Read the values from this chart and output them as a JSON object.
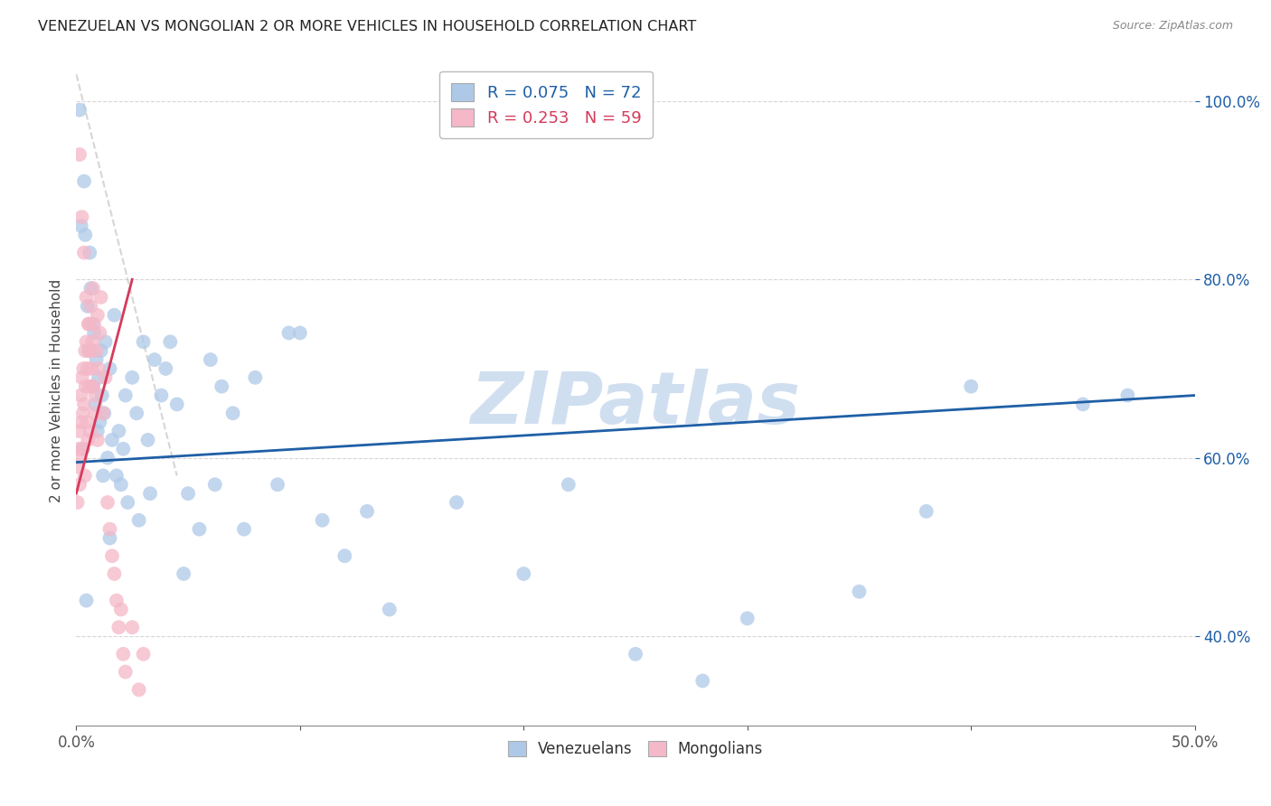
{
  "title": "VENEZUELAN VS MONGOLIAN 2 OR MORE VEHICLES IN HOUSEHOLD CORRELATION CHART",
  "source": "Source: ZipAtlas.com",
  "ylabel": "2 or more Vehicles in Household",
  "xlim": [
    0.0,
    50.0
  ],
  "ylim": [
    30.0,
    105.0
  ],
  "yticks": [
    40.0,
    60.0,
    80.0,
    100.0
  ],
  "xticks": [
    0.0,
    10.0,
    20.0,
    30.0,
    40.0,
    50.0
  ],
  "legend_blue_r": "R = 0.075",
  "legend_blue_n": "N = 72",
  "legend_pink_r": "R = 0.253",
  "legend_pink_n": "N = 59",
  "blue_color": "#aec9e8",
  "pink_color": "#f4b8c8",
  "blue_line_color": "#1f5fa6",
  "pink_line_color": "#d63a5a",
  "diag_color": "#cccccc",
  "watermark": "ZIPatlas",
  "watermark_color": "#d0dff0",
  "blue_line_x": [
    0.0,
    50.0
  ],
  "blue_line_y": [
    59.5,
    67.0
  ],
  "pink_line_x": [
    0.0,
    2.5
  ],
  "pink_line_y": [
    56.0,
    80.0
  ],
  "diag_line_x": [
    0.0,
    4.5
  ],
  "diag_line_y": [
    103.0,
    58.0
  ],
  "venezuelan_x": [
    0.15,
    0.22,
    0.35,
    0.4,
    0.5,
    0.55,
    0.6,
    0.65,
    0.7,
    0.75,
    0.8,
    0.85,
    0.9,
    0.95,
    1.0,
    1.05,
    1.1,
    1.15,
    1.2,
    1.25,
    1.3,
    1.4,
    1.5,
    1.6,
    1.7,
    1.8,
    1.9,
    2.0,
    2.1,
    2.2,
    2.3,
    2.5,
    2.7,
    3.0,
    3.2,
    3.5,
    3.8,
    4.0,
    4.2,
    4.5,
    5.0,
    5.5,
    6.0,
    6.5,
    7.0,
    8.0,
    9.0,
    10.0,
    11.0,
    12.0,
    13.0,
    14.0,
    17.0,
    20.0,
    25.0,
    30.0,
    35.0,
    40.0,
    45.0,
    47.0,
    22.0,
    28.0,
    38.0,
    9.5,
    7.5,
    6.2,
    4.8,
    3.3,
    2.8,
    1.5,
    0.45,
    0.3
  ],
  "venezuelan_y": [
    99.0,
    86.0,
    91.0,
    85.0,
    77.0,
    72.0,
    83.0,
    79.0,
    75.0,
    68.0,
    74.0,
    66.0,
    71.0,
    63.0,
    69.0,
    64.0,
    72.0,
    67.0,
    58.0,
    65.0,
    73.0,
    60.0,
    70.0,
    62.0,
    76.0,
    58.0,
    63.0,
    57.0,
    61.0,
    67.0,
    55.0,
    69.0,
    65.0,
    73.0,
    62.0,
    71.0,
    67.0,
    70.0,
    73.0,
    66.0,
    56.0,
    52.0,
    71.0,
    68.0,
    65.0,
    69.0,
    57.0,
    74.0,
    53.0,
    49.0,
    54.0,
    43.0,
    55.0,
    47.0,
    38.0,
    42.0,
    45.0,
    68.0,
    66.0,
    67.0,
    57.0,
    35.0,
    54.0,
    74.0,
    52.0,
    57.0,
    47.0,
    56.0,
    53.0,
    51.0,
    44.0,
    61.0
  ],
  "mongolian_x": [
    0.05,
    0.08,
    0.1,
    0.12,
    0.15,
    0.18,
    0.2,
    0.22,
    0.25,
    0.28,
    0.3,
    0.32,
    0.35,
    0.38,
    0.4,
    0.42,
    0.45,
    0.48,
    0.5,
    0.52,
    0.55,
    0.58,
    0.6,
    0.62,
    0.65,
    0.68,
    0.7,
    0.72,
    0.75,
    0.8,
    0.85,
    0.9,
    0.95,
    1.0,
    1.05,
    1.1,
    1.2,
    1.3,
    1.4,
    1.5,
    1.6,
    1.7,
    1.8,
    1.9,
    2.0,
    2.1,
    2.2,
    2.5,
    2.8,
    3.0,
    0.15,
    0.25,
    0.35,
    0.45,
    0.55,
    0.65,
    0.75,
    0.85,
    0.95
  ],
  "mongolian_y": [
    55.0,
    59.0,
    61.0,
    63.0,
    57.0,
    60.0,
    67.0,
    64.0,
    69.0,
    61.0,
    65.0,
    70.0,
    66.0,
    58.0,
    72.0,
    68.0,
    73.0,
    64.0,
    70.0,
    62.0,
    75.0,
    68.0,
    72.0,
    63.0,
    77.0,
    70.0,
    68.0,
    73.0,
    79.0,
    75.0,
    67.0,
    72.0,
    76.0,
    70.0,
    74.0,
    78.0,
    65.0,
    69.0,
    55.0,
    52.0,
    49.0,
    47.0,
    44.0,
    41.0,
    43.0,
    38.0,
    36.0,
    41.0,
    34.0,
    38.0,
    94.0,
    87.0,
    83.0,
    78.0,
    75.0,
    72.0,
    68.0,
    65.0,
    62.0
  ]
}
